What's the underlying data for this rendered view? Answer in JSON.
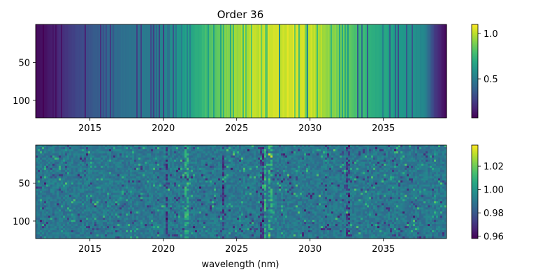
{
  "chart_data": [
    {
      "type": "heatmap",
      "title": "Order 36",
      "xlabel": "",
      "ylabel": "",
      "xlim": [
        2011.3,
        2039.3
      ],
      "ylim": [
        123,
        0
      ],
      "x_ticks": [
        2015,
        2020,
        2025,
        2030,
        2035
      ],
      "x_tick_labels": [
        "2015",
        "2020",
        "2025",
        "2030",
        "2035"
      ],
      "y_ticks": [
        50,
        100
      ],
      "y_tick_labels": [
        "50",
        "100"
      ],
      "colormap": "viridis",
      "colorbar": {
        "vmin": 0.07,
        "vmax": 1.1,
        "ticks": [
          0.5,
          1.0
        ],
        "tick_labels": [
          "0.5",
          "1.0"
        ]
      },
      "profile_knots": {
        "x": [
          2011.3,
          2012.0,
          2013.0,
          2014.0,
          2015.0,
          2016.0,
          2017.0,
          2018.0,
          2019.0,
          2020.0,
          2021.0,
          2022.0,
          2023.0,
          2024.0,
          2025.0,
          2026.0,
          2027.0,
          2028.0,
          2029.0,
          2030.0,
          2031.0,
          2032.0,
          2033.0,
          2034.0,
          2035.0,
          2036.0,
          2037.0,
          2037.8,
          2038.5,
          2039.3
        ],
        "value": [
          0.1,
          0.12,
          0.2,
          0.28,
          0.34,
          0.4,
          0.44,
          0.46,
          0.5,
          0.54,
          0.6,
          0.68,
          0.8,
          0.88,
          0.95,
          1.0,
          1.02,
          1.03,
          1.06,
          1.02,
          0.96,
          0.88,
          0.8,
          0.74,
          0.68,
          0.62,
          0.58,
          0.55,
          0.25,
          0.08
        ]
      }
    },
    {
      "type": "heatmap",
      "title": "",
      "xlabel": "wavelength (nm)",
      "ylabel": "",
      "xlim": [
        2011.3,
        2039.3
      ],
      "ylim": [
        123,
        0
      ],
      "x_ticks": [
        2015,
        2020,
        2025,
        2030,
        2035
      ],
      "x_tick_labels": [
        "2015",
        "2020",
        "2025",
        "2030",
        "2035"
      ],
      "y_ticks": [
        50,
        100
      ],
      "y_tick_labels": [
        "50",
        "100"
      ],
      "colormap": "viridis",
      "colorbar": {
        "vmin": 0.958,
        "vmax": 1.038,
        "ticks": [
          0.96,
          0.98,
          1.0,
          1.02
        ],
        "tick_labels": [
          "0.96",
          "0.98",
          "1.00",
          "1.02"
        ]
      },
      "base_value": 0.99,
      "dark_lines_nm": [
        2020.2,
        2024.1,
        2026.7,
        2032.6
      ],
      "bright_lines_nm": [
        2021.6,
        2026.9,
        2027.3
      ]
    }
  ]
}
